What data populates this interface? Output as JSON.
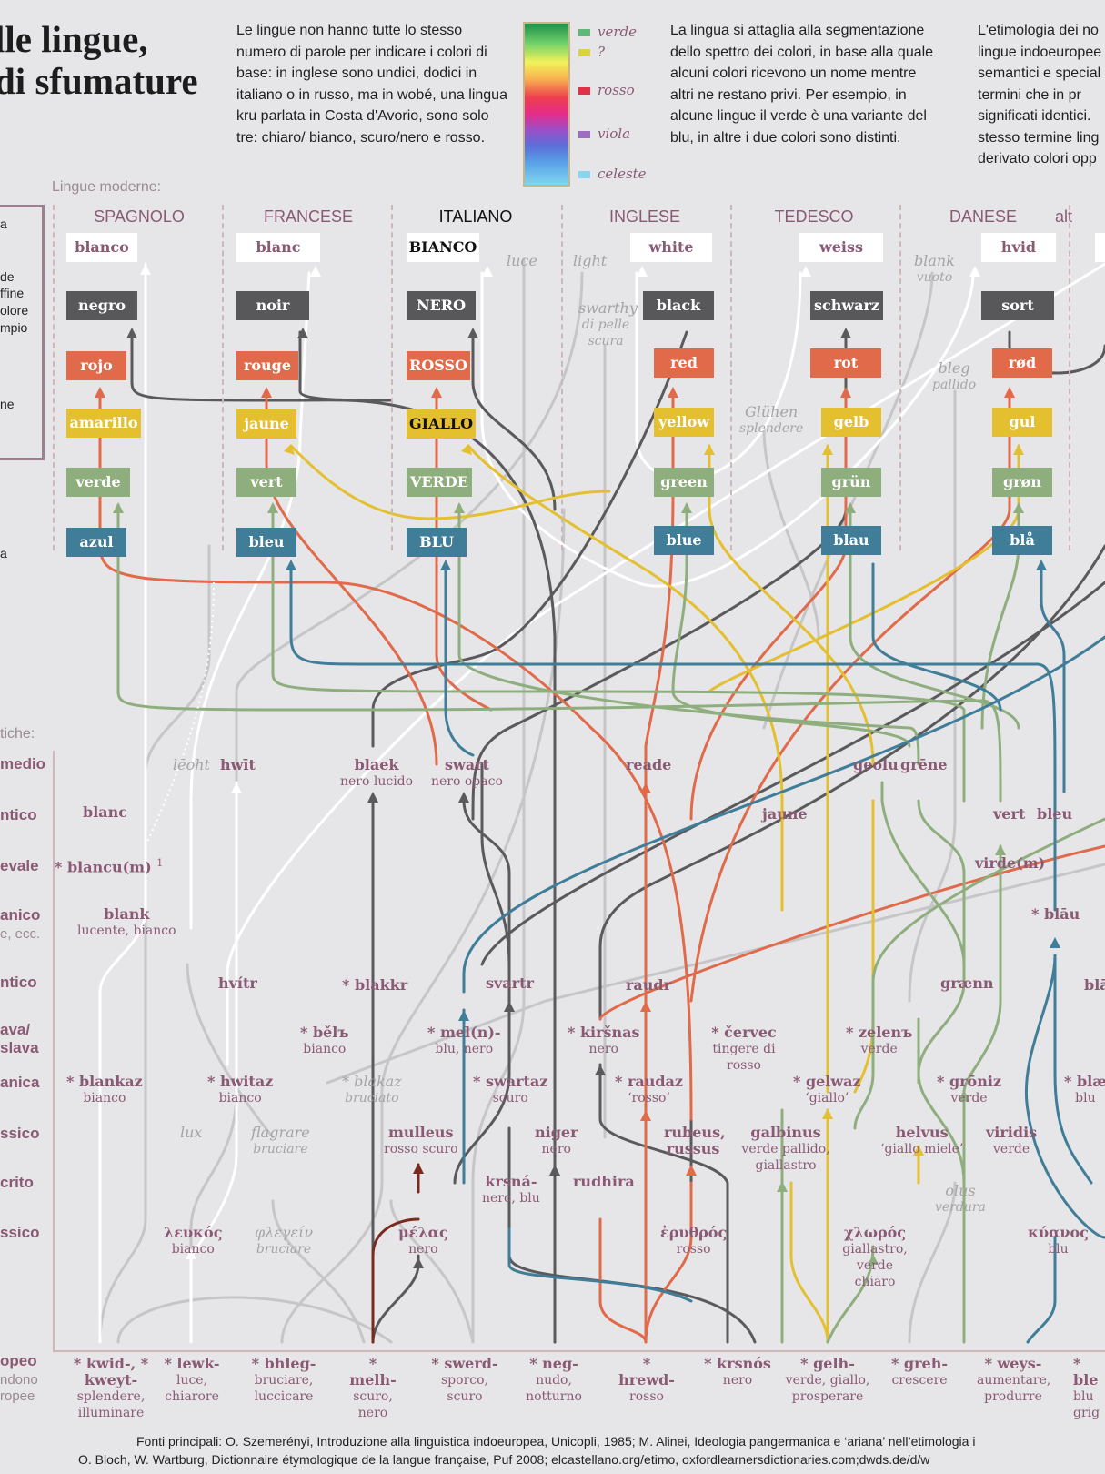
{
  "title": {
    "line1": "lle lingue,",
    "line2": "di sfumature"
  },
  "intro1": "Le lingue non hanno tutte lo stesso numero di parole per indicare i colori di base: in inglese sono undici, dodici in italiano o in russo, ma in wobé, una lingua kru parlata in Costa d'Avorio, sono solo tre: chiaro/ bianco, scuro/nero e rosso.",
  "intro2": "La lingua si attaglia alla segmentazione dello spettro dei colori, in base alla quale alcuni colori ricevono un nome mentre altri ne restano privi. Per esempio, in alcune lingue il verde è una variante del blu, in altre i due colori sono distinti.",
  "intro3": "L'etimologia dei no lingue indoeuropee semantici e special di termini che in pr significati identici. stesso termine ling derivato colori opp",
  "legend": [
    {
      "label": "verde",
      "color": "#5fb87a"
    },
    {
      "label": "?",
      "color": "#d8d24a"
    },
    {
      "label": "rosso",
      "color": "#e03148"
    },
    {
      "label": "viola",
      "color": "#9a6fc0"
    },
    {
      "label": "celeste",
      "color": "#8ad4ec"
    }
  ],
  "left_legend": [
    "a",
    "de",
    "ffine",
    "olore",
    "mpio",
    "ne",
    "a"
  ],
  "modern_heading": "Lingue moderne:",
  "ancient_heading": "tiche:",
  "languages": [
    {
      "name": "SPAGNOLO",
      "words": [
        "blanco",
        "negro",
        "rojo",
        "amarillo",
        "verde",
        "azul"
      ]
    },
    {
      "name": "FRANCESE",
      "words": [
        "blanc",
        "noir",
        "rouge",
        "jaune",
        "vert",
        "bleu"
      ]
    },
    {
      "name": "ITALIANO",
      "words": [
        "BIANCO",
        "NERO",
        "ROSSO",
        "GIALLO",
        "VERDE",
        "BLU"
      ]
    },
    {
      "name": "INGLESE",
      "words": [
        "white",
        "black",
        "red",
        "yellow",
        "green",
        "blue"
      ]
    },
    {
      "name": "TEDESCO",
      "words": [
        "weiss",
        "schwarz",
        "rot",
        "gelb",
        "grün",
        "blau"
      ]
    },
    {
      "name": "DANESE",
      "words": [
        "hvid",
        "sort",
        "rød",
        "gul",
        "grøn",
        "blå"
      ]
    },
    {
      "name": "alt",
      "words": []
    }
  ],
  "extra_modern": [
    {
      "w": "luce",
      "g": ""
    },
    {
      "w": "light",
      "g": ""
    },
    {
      "w": "swarthy",
      "g": "di pelle scura"
    },
    {
      "w": "Glühen",
      "g": "splendere"
    },
    {
      "w": "blank",
      "g": "vuoto"
    },
    {
      "w": "bleg",
      "g": "pallido"
    }
  ],
  "rows": [
    "medio",
    "ntico",
    "evale",
    "anico",
    "e, ecc.",
    "ntico",
    "ava/ slava",
    "anica",
    "ssico",
    "crito",
    "ssico",
    "opeo",
    "ndono ropee"
  ],
  "ancient": {
    "blanc": {
      "w": "blanc"
    },
    "blancu": {
      "w": "* blancu(m)",
      "sup": "1"
    },
    "blank": {
      "w": "blank",
      "g": "lucente, bianco"
    },
    "blankaz": {
      "w": "* blankaz",
      "g": "bianco"
    },
    "leoht": {
      "w": "lēoht"
    },
    "hwit": {
      "w": "hwīt"
    },
    "hvitr": {
      "w": "hvítr"
    },
    "hwitaz": {
      "w": "* hwitaz",
      "g": "bianco"
    },
    "lux": {
      "w": "lux"
    },
    "leukos": {
      "w": "λευκός",
      "g": "bianco"
    },
    "flagrare": {
      "w": "flagrare",
      "g": "bruciare"
    },
    "phlegein": {
      "w": "φλεγείν",
      "g": "bruciare"
    },
    "belb": {
      "w": "* bělъ",
      "g": "bianco"
    },
    "blakaz": {
      "w": "* blakaz",
      "g": "bruciato"
    },
    "blaek": {
      "w": "blaek",
      "g": "nero lucido"
    },
    "blakkr": {
      "w": "* blakkr"
    },
    "swart": {
      "w": "swart",
      "g": "nero opaco"
    },
    "svartr": {
      "w": "svartr"
    },
    "swartaz": {
      "w": "* swartaz",
      "g": "scuro"
    },
    "meln": {
      "w": "* mel(n)-",
      "g": "blu, nero"
    },
    "mulleus": {
      "w": "mulleus",
      "g": "rosso scuro"
    },
    "melas": {
      "w": "μέλας",
      "g": "nero"
    },
    "niger": {
      "w": "niger",
      "g": "nero"
    },
    "krsna": {
      "w": "krsná-",
      "g": "nero, blu"
    },
    "kirsnas": {
      "w": "* kiršnas",
      "g": "nero"
    },
    "reade": {
      "w": "reade"
    },
    "raudr": {
      "w": "raudr"
    },
    "raudaz": {
      "w": "* raudaz",
      "g": "‘rosso’"
    },
    "rudhira": {
      "w": "rudhira"
    },
    "rubeus": {
      "w": "rubeus, russus"
    },
    "erythros": {
      "w": "ἐρυθρός",
      "g": "rosso"
    },
    "cervec": {
      "w": "* červec",
      "g": "tingere di rosso"
    },
    "jaune": {
      "w": "jaune"
    },
    "galbinus": {
      "w": "galbinus",
      "g": "verde pallido, giallastro"
    },
    "gelwaz": {
      "w": "* gelwaz",
      "g": "‘giallo’"
    },
    "geolu": {
      "w": "geolu"
    },
    "grene": {
      "w": "grēne"
    },
    "zelen": {
      "w": "* zelenъ",
      "g": "verde"
    },
    "helvus": {
      "w": "helvus",
      "g": "‘giallo miele’"
    },
    "chloros": {
      "w": "χλωρός",
      "g": "giallastro, verde chiaro"
    },
    "olus": {
      "w": "olus",
      "g": "verdura"
    },
    "graenn": {
      "w": "grænn"
    },
    "groniz": {
      "w": "* grōniz",
      "g": "verde"
    },
    "vert": {
      "w": "vert"
    },
    "virdem": {
      "w": "virde(m)"
    },
    "viridis": {
      "w": "viridis",
      "g": "verde"
    },
    "bleu": {
      "w": "bleu"
    },
    "blau": {
      "w": "* blāu"
    },
    "kyanos": {
      "w": "κύανος",
      "g": "blu"
    },
    "blae": {
      "w": "* blæ",
      "g": "blu"
    },
    "bla": {
      "w": "blā"
    }
  },
  "roots": [
    {
      "w": "* kwid-, * kweyt-",
      "g": "splendere, illuminare"
    },
    {
      "w": "* lewk-",
      "g": "luce, chiarore"
    },
    {
      "w": "* bhleg-",
      "g": "bruciare, luccicare"
    },
    {
      "w": "* melh-",
      "g": "scuro, nero"
    },
    {
      "w": "* swerd-",
      "g": "sporco, scuro"
    },
    {
      "w": "* neg-",
      "g": "nudo, notturno"
    },
    {
      "w": "* hrewd-",
      "g": "rosso"
    },
    {
      "w": "* krsnós",
      "g": "nero"
    },
    {
      "w": "* gelh-",
      "g": "verde, giallo, prosperare"
    },
    {
      "w": "* greh-",
      "g": "crescere"
    },
    {
      "w": "* weys-",
      "g": "aumentare, produrre"
    },
    {
      "w": "* ble",
      "g": "blu grig"
    }
  ],
  "sources": {
    "line1": "Fonti principali: O. Szemerényi, Introduzione alla linguistica indoeuropea, Unicopli, 1985; M. Alinei, Ideologia pangermanica e ‘ariana’ nell’etimologia i",
    "line2": "O. Bloch, W. Wartburg, Dictionnaire étymologique de la langue française, Puf 2008; elcastellano.org/etimo, oxfordlearnersdictionaries.com;dwds.de/d/w"
  },
  "colors": {
    "white": "#ffffff",
    "black": "#58585a",
    "red": "#e06a4a",
    "yellow": "#e4bf2f",
    "green": "#8fae7e",
    "blue": "#3f7d98",
    "gray": "#c8c8c8",
    "label": "#8a5a74"
  }
}
